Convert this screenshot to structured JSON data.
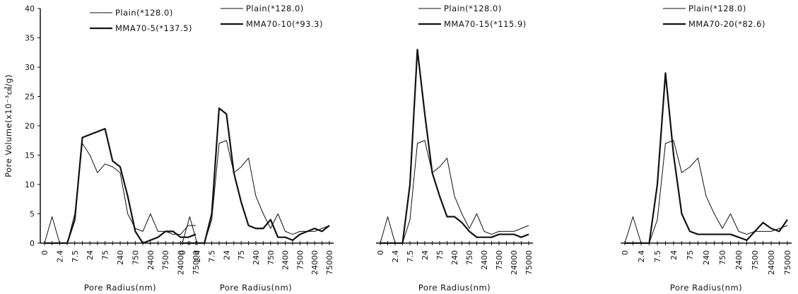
{
  "chart_data": [
    {
      "type": "line",
      "y_label": "Pore Volume(x10⁻³㎤/g)",
      "x_label": "Pore Radius(nm)",
      "categories": [
        "0",
        null,
        "2.4",
        null,
        "7.5",
        null,
        "24",
        null,
        "75",
        null,
        "240",
        null,
        "750",
        null,
        "2400",
        null,
        "7500",
        null,
        "24000",
        null,
        "75000"
      ],
      "ylim": [
        0,
        40
      ],
      "yticks": [
        0,
        5,
        10,
        15,
        20,
        25,
        30,
        35,
        40
      ],
      "series": [
        {
          "name": "Plain(*128.0)",
          "color": "#111111",
          "values": [
            0,
            4.5,
            0,
            0,
            5,
            17,
            15,
            12,
            13.5,
            13,
            12,
            5,
            2.5,
            2,
            5,
            2,
            2,
            1.5,
            1.5,
            3,
            3
          ]
        },
        {
          "name": "MMA70-5(*137.5)",
          "color": "#111111",
          "values": [
            0,
            0,
            0,
            0,
            4,
            18,
            18.5,
            19,
            19.5,
            14,
            13,
            8,
            2,
            0,
            0.5,
            1,
            2,
            2,
            1,
            1,
            1.5
          ]
        }
      ]
    },
    {
      "type": "line",
      "x_label": "Pore Radius(nm)",
      "categories": [
        "0",
        null,
        "2.4",
        null,
        "7.5",
        null,
        "24",
        null,
        "75",
        null,
        "240",
        null,
        "750",
        null,
        "2400",
        null,
        "7500",
        null,
        "24000",
        null,
        "75000"
      ],
      "ylim": [
        0,
        40
      ],
      "series": [
        {
          "name": "Plain(*128.0)",
          "color": "#111111",
          "values": [
            0,
            4.5,
            0,
            0,
            4,
            17,
            17.5,
            12,
            13,
            14.5,
            8,
            5,
            2.5,
            5,
            2,
            1.5,
            2,
            2,
            2,
            2.5,
            3
          ]
        },
        {
          "name": "MMA70-10(*93.3)",
          "color": "#111111",
          "values": [
            0,
            0,
            0,
            0,
            5,
            23,
            22,
            12,
            7,
            3,
            2.5,
            2.5,
            4,
            1,
            1,
            0.5,
            1.5,
            2,
            2.5,
            2,
            3
          ]
        }
      ]
    },
    {
      "type": "line",
      "x_label": "Pore Radius(nm)",
      "categories": [
        "0",
        null,
        "2.4",
        null,
        "7.5",
        null,
        "24",
        null,
        "75",
        null,
        "240",
        null,
        "750",
        null,
        "2400",
        null,
        "7500",
        null,
        "24000",
        null,
        "75000"
      ],
      "ylim": [
        0,
        40
      ],
      "series": [
        {
          "name": "Plain(*128.0)",
          "color": "#111111",
          "values": [
            0,
            4.5,
            0,
            0,
            4,
            17,
            17.5,
            12,
            13,
            14.5,
            8,
            5,
            2.5,
            5,
            2,
            1.5,
            2,
            2,
            2,
            2.5,
            3
          ]
        },
        {
          "name": "MMA70-15(*115.9)",
          "color": "#111111",
          "values": [
            0,
            0,
            0,
            0,
            10,
            33,
            22,
            12,
            8,
            4.5,
            4.5,
            3.5,
            2,
            1,
            1,
            1,
            1.5,
            1.5,
            1.5,
            1,
            1.5
          ]
        }
      ]
    },
    {
      "type": "line",
      "x_label": "Pore Radius(nm)",
      "categories": [
        "0",
        null,
        "2.4",
        null,
        "7.5",
        null,
        "24",
        null,
        "75",
        null,
        "240",
        null,
        "750",
        null,
        "2400",
        null,
        "7500",
        null,
        "24000",
        null,
        "75000"
      ],
      "ylim": [
        0,
        40
      ],
      "series": [
        {
          "name": "Plain(*128.0)",
          "color": "#111111",
          "values": [
            0,
            4.5,
            0,
            0,
            4,
            17,
            17.5,
            12,
            13,
            14.5,
            8,
            5,
            2.5,
            5,
            2,
            1.5,
            2,
            2,
            2,
            2.5,
            3
          ]
        },
        {
          "name": "MMA70-20(*82.6)",
          "color": "#111111",
          "values": [
            0,
            0,
            0,
            0,
            10,
            29,
            15,
            5,
            2,
            1.5,
            1.5,
            1.5,
            1.5,
            1.5,
            1,
            0.5,
            2,
            3.5,
            2.5,
            2,
            4
          ]
        }
      ]
    }
  ]
}
